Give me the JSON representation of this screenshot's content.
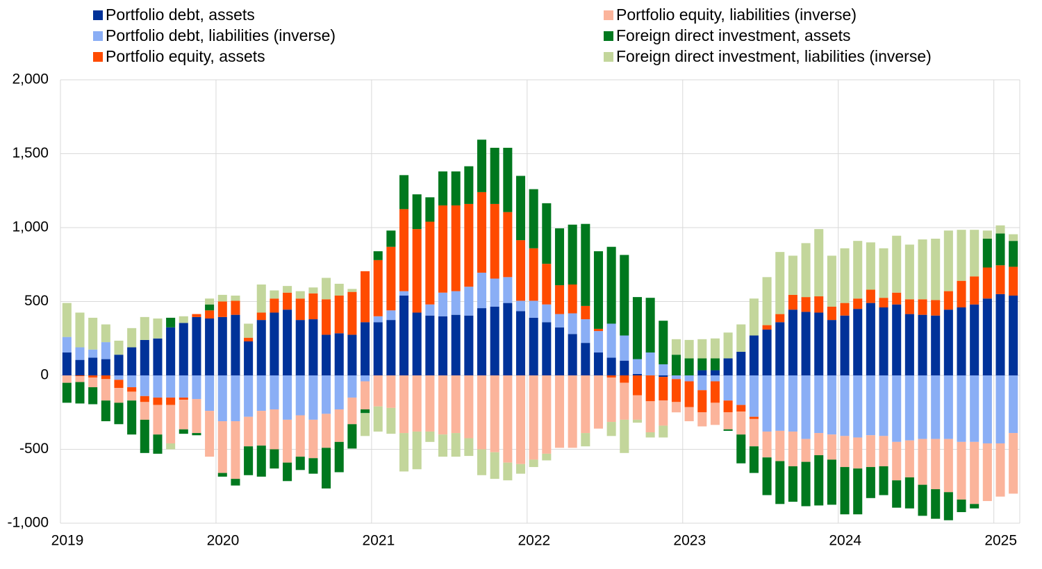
{
  "chart_data": {
    "type": "bar",
    "stacked": true,
    "legend": "top",
    "grid": true,
    "categories": [
      "2019",
      null,
      null,
      null,
      null,
      null,
      null,
      null,
      null,
      null,
      null,
      null,
      "2020",
      null,
      null,
      null,
      null,
      null,
      null,
      null,
      null,
      null,
      null,
      null,
      "2021",
      null,
      null,
      null,
      null,
      null,
      null,
      null,
      null,
      null,
      null,
      null,
      "2022",
      null,
      null,
      null,
      null,
      null,
      null,
      null,
      null,
      null,
      null,
      null,
      "2023",
      null,
      null,
      null,
      null,
      null,
      null,
      null,
      null,
      null,
      null,
      null,
      "2024",
      null,
      null,
      null,
      null,
      null,
      null,
      null,
      null,
      null,
      null,
      null,
      "2025",
      null
    ],
    "ylim": [
      -1000,
      2000
    ],
    "yticks": [
      {
        "value": -1000,
        "label": "-1,000"
      },
      -500,
      0,
      500,
      {
        "value": 1000,
        "label": "1,000"
      },
      {
        "value": 1500,
        "label": "1,500"
      },
      {
        "value": 2000,
        "label": "2,000"
      }
    ],
    "series": [
      {
        "name": "Portfolio debt, assets",
        "color": "#003299",
        "values": [
          155,
          105,
          120,
          110,
          140,
          190,
          240,
          250,
          325,
          355,
          395,
          385,
          395,
          410,
          230,
          375,
          425,
          445,
          375,
          380,
          275,
          285,
          275,
          360,
          360,
          375,
          540,
          425,
          405,
          400,
          410,
          405,
          455,
          465,
          490,
          435,
          390,
          360,
          325,
          280,
          220,
          155,
          120,
          100,
          10,
          0,
          -10,
          0,
          0,
          35,
          35,
          115,
          160,
          270,
          310,
          360,
          445,
          430,
          425,
          375,
          405,
          450,
          490,
          460,
          480,
          415,
          410,
          405,
          445,
          460,
          480,
          520,
          550,
          540
        ]
      },
      {
        "name": "Portfolio debt, liabilities (inverse)",
        "color": "#8aaef5",
        "values": [
          105,
          85,
          55,
          115,
          -30,
          -80,
          -140,
          -150,
          -150,
          -150,
          -160,
          -240,
          -310,
          -310,
          -280,
          -240,
          -230,
          -300,
          -270,
          -300,
          -260,
          -230,
          -150,
          -40,
          40,
          65,
          30,
          0,
          75,
          160,
          160,
          195,
          240,
          190,
          175,
          70,
          115,
          120,
          90,
          140,
          160,
          145,
          230,
          170,
          100,
          155,
          75,
          -25,
          -40,
          -100,
          -40,
          -170,
          -200,
          -280,
          -380,
          -375,
          -380,
          -430,
          -390,
          -400,
          -410,
          -420,
          -405,
          -410,
          -450,
          -440,
          -430,
          -430,
          -430,
          -450,
          -450,
          -460,
          -460,
          -390
        ]
      },
      {
        "name": "Portfolio equity, assets",
        "color": "#ff4b00",
        "values": [
          0,
          -5,
          -15,
          -25,
          -55,
          -30,
          -40,
          -50,
          -50,
          -15,
          20,
          55,
          105,
          95,
          25,
          50,
          95,
          115,
          145,
          175,
          240,
          255,
          290,
          345,
          380,
          430,
          555,
          565,
          560,
          590,
          580,
          560,
          545,
          505,
          440,
          410,
          355,
          275,
          195,
          195,
          90,
          15,
          -15,
          -50,
          -135,
          -175,
          -160,
          -155,
          -175,
          -150,
          -145,
          -80,
          -45,
          -15,
          30,
          55,
          100,
          100,
          110,
          90,
          85,
          70,
          90,
          65,
          80,
          100,
          105,
          105,
          125,
          180,
          190,
          210,
          195,
          195
        ]
      },
      {
        "name": "Portfolio equity, liabilities (inverse)",
        "color": "#fbb49b",
        "values": [
          -50,
          -40,
          -65,
          -145,
          -100,
          -60,
          -120,
          -200,
          -260,
          -200,
          -230,
          -310,
          -350,
          -390,
          -200,
          -235,
          -270,
          -290,
          -280,
          -260,
          -230,
          -220,
          -180,
          -190,
          -210,
          -220,
          -390,
          -380,
          -380,
          -400,
          -390,
          -425,
          -500,
          -520,
          -590,
          -600,
          -570,
          -530,
          -490,
          -490,
          -390,
          -360,
          -300,
          -250,
          -165,
          -210,
          -170,
          -70,
          -95,
          -95,
          -150,
          -115,
          -155,
          -185,
          -175,
          -205,
          -235,
          -155,
          -150,
          -170,
          -210,
          -210,
          -215,
          -205,
          -260,
          -250,
          -310,
          -340,
          -360,
          -390,
          -420,
          -390,
          -360,
          -410
        ]
      },
      {
        "name": "Foreign direct investment, assets",
        "color": "#00781e",
        "values": [
          -135,
          -145,
          -115,
          -140,
          -145,
          -230,
          -225,
          -130,
          65,
          -30,
          -15,
          40,
          -25,
          -45,
          -195,
          -210,
          -130,
          -125,
          -90,
          -105,
          -275,
          -205,
          -165,
          -25,
          60,
          110,
          230,
          235,
          165,
          230,
          230,
          255,
          355,
          380,
          435,
          435,
          400,
          410,
          385,
          405,
          555,
          525,
          520,
          545,
          420,
          370,
          295,
          140,
          115,
          80,
          80,
          -10,
          -195,
          -180,
          -255,
          -290,
          -240,
          -300,
          -340,
          -305,
          -320,
          -310,
          -210,
          -195,
          -185,
          -210,
          -210,
          -200,
          -190,
          -85,
          -30,
          195,
          215,
          175
        ]
      },
      {
        "name": "Foreign direct investment, liabilities (inverse)",
        "color": "#c3d69b",
        "values": [
          230,
          235,
          215,
          120,
          95,
          130,
          155,
          135,
          -40,
          45,
          0,
          40,
          45,
          35,
          95,
          190,
          55,
          45,
          50,
          40,
          145,
          80,
          20,
          -155,
          -170,
          -175,
          -260,
          -255,
          -70,
          -150,
          -160,
          -120,
          -175,
          -180,
          -120,
          -65,
          -50,
          -45,
          0,
          0,
          -90,
          0,
          -95,
          -225,
          -20,
          -35,
          -80,
          105,
          125,
          130,
          135,
          175,
          185,
          250,
          325,
          420,
          265,
          365,
          455,
          345,
          370,
          390,
          320,
          335,
          385,
          370,
          405,
          415,
          410,
          345,
          315,
          55,
          55,
          45
        ]
      }
    ]
  }
}
